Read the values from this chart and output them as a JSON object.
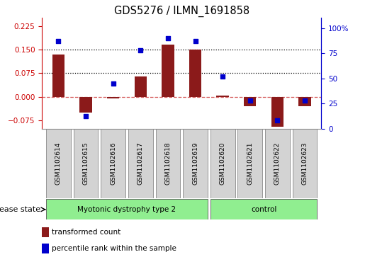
{
  "title": "GDS5276 / ILMN_1691858",
  "samples": [
    "GSM1102614",
    "GSM1102615",
    "GSM1102616",
    "GSM1102617",
    "GSM1102618",
    "GSM1102619",
    "GSM1102620",
    "GSM1102621",
    "GSM1102622",
    "GSM1102623"
  ],
  "red_values": [
    0.135,
    -0.05,
    -0.005,
    0.065,
    0.165,
    0.15,
    0.005,
    -0.03,
    -0.095,
    -0.03
  ],
  "blue_values": [
    87,
    12,
    45,
    78,
    90,
    87,
    52,
    28,
    8,
    28
  ],
  "group1_label": "Myotonic dystrophy type 2",
  "group1_indices": [
    0,
    5
  ],
  "group2_label": "control",
  "group2_indices": [
    6,
    9
  ],
  "left_ylim": [
    -0.1,
    0.25
  ],
  "right_ylim": [
    0,
    110
  ],
  "left_yticks": [
    -0.075,
    0.0,
    0.075,
    0.15,
    0.225
  ],
  "right_yticks": [
    0,
    25,
    50,
    75,
    100
  ],
  "right_yticklabels": [
    "0",
    "25",
    "50",
    "75",
    "100%"
  ],
  "dotted_lines": [
    0.075,
    0.15
  ],
  "zero_line_color": "#CC3333",
  "bar_color": "#8B1A1A",
  "dot_color": "#0000CC",
  "group_color": "#90EE90",
  "sample_box_color": "#D3D3D3",
  "left_axis_color": "#CC0000",
  "right_axis_color": "#0000CC",
  "legend_item1": "transformed count",
  "legend_item2": "percentile rank within the sample",
  "disease_state_label": "disease state"
}
